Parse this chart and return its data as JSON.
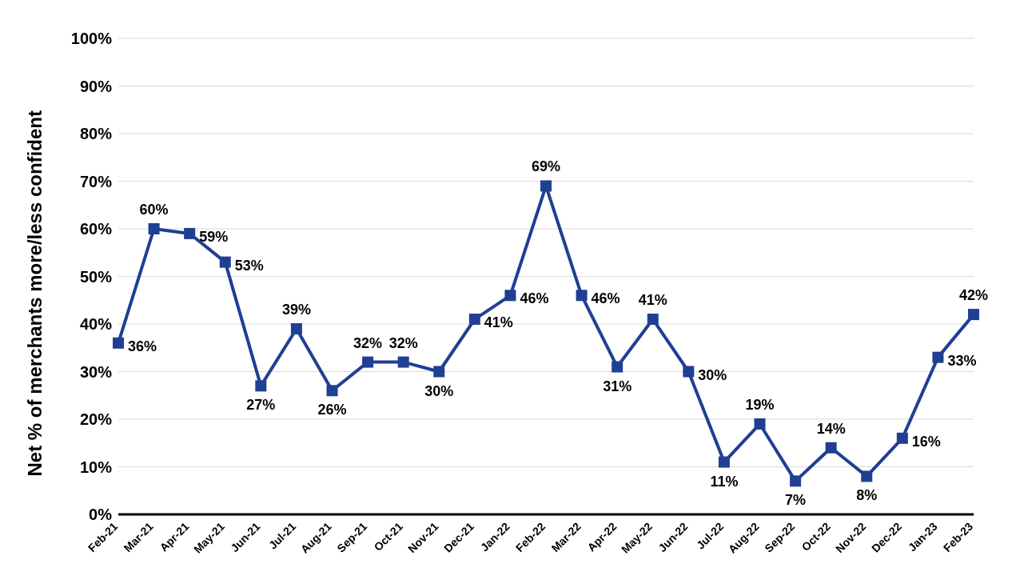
{
  "chart_data": {
    "type": "line",
    "ylabel": "Net % of merchants more/less confident",
    "categories": [
      "Feb-21",
      "Mar-21",
      "Apr-21",
      "May-21",
      "Jun-21",
      "Jul-21",
      "Aug-21",
      "Sep-21",
      "Oct-21",
      "Nov-21",
      "Dec-21",
      "Jan-22",
      "Feb-22",
      "Mar-22",
      "Apr-22",
      "May-22",
      "Jun-22",
      "Jul-22",
      "Aug-22",
      "Sep-22",
      "Oct-22",
      "Nov-22",
      "Dec-22",
      "Jan-23",
      "Feb-23"
    ],
    "series": [
      {
        "color": "#1f3f93",
        "values": [
          36,
          60,
          59,
          53,
          27,
          39,
          26,
          32,
          32,
          30,
          41,
          46,
          69,
          46,
          31,
          41,
          30,
          11,
          19,
          7,
          14,
          8,
          16,
          33,
          42
        ],
        "value_labels": [
          "36%",
          "60%",
          "59%",
          "53%",
          "27%",
          "39%",
          "26%",
          "32%",
          "32%",
          "30%",
          "41%",
          "46%",
          "69%",
          "46%",
          "31%",
          "41%",
          "30%",
          "11%",
          "19%",
          "7%",
          "14%",
          "8%",
          "16%",
          "33%",
          "42%"
        ]
      }
    ],
    "ylim": [
      0,
      100
    ],
    "yticks": [
      {
        "value": 0,
        "label": "0%"
      },
      {
        "value": 10,
        "label": "10%"
      },
      {
        "value": 20,
        "label": "20%"
      },
      {
        "value": 30,
        "label": "30%"
      },
      {
        "value": 40,
        "label": "40%"
      },
      {
        "value": 50,
        "label": "50%"
      },
      {
        "value": 60,
        "label": "60%"
      },
      {
        "value": 70,
        "label": "70%"
      },
      {
        "value": 80,
        "label": "80%"
      },
      {
        "value": 90,
        "label": "90%"
      },
      {
        "value": 100,
        "label": "100%"
      }
    ],
    "marker": "square",
    "line_style": "solid",
    "grid": "y",
    "legend": false
  }
}
